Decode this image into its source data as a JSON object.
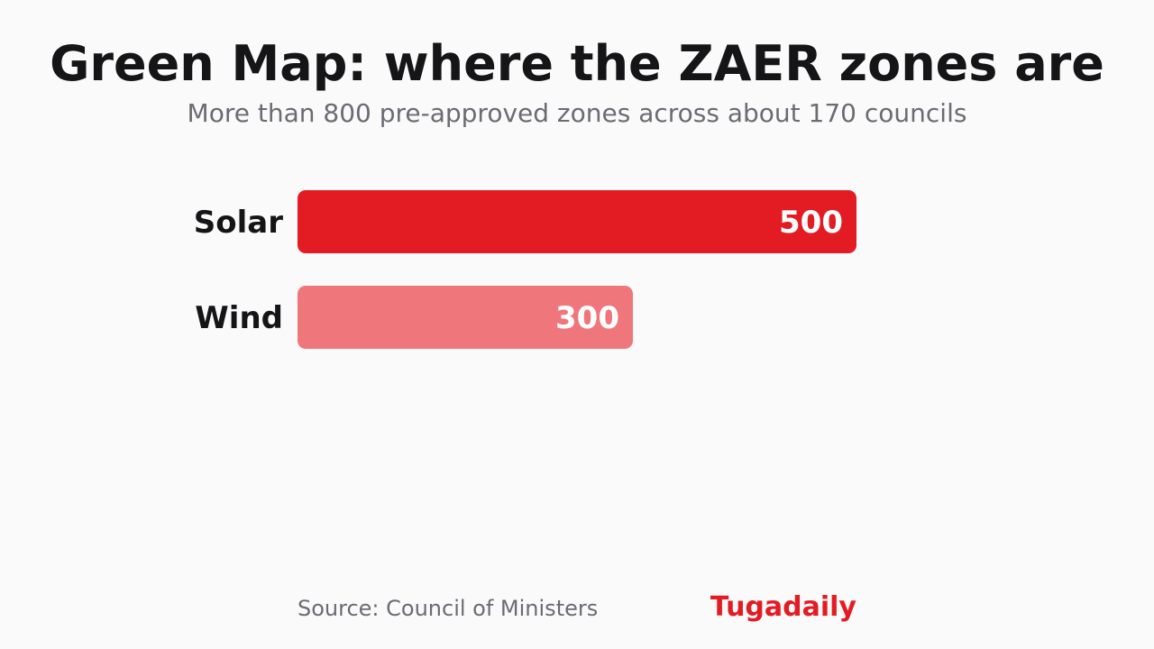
{
  "header": {
    "title": "Green Map: where the ZAER zones are",
    "subtitle": "More than 800 pre-approved zones across about 170 councils"
  },
  "footer": {
    "source": "Source: Council of Ministers",
    "brand": "Tugadaily"
  },
  "colors": {
    "primary": "#e31c24",
    "secondary": "#ef777c",
    "background": "#fafafa"
  },
  "chart_data": {
    "type": "bar",
    "orientation": "horizontal",
    "title": "Green Map: where the ZAER zones are",
    "subtitle": "More than 800 pre-approved zones across about 170 councils",
    "categories": [
      "Solar",
      "Wind"
    ],
    "values": [
      500,
      300
    ],
    "data_labels": [
      "500",
      "300"
    ],
    "bar_colors": [
      "#e31c24",
      "#ef777c"
    ],
    "xlim": [
      0,
      500
    ],
    "grid": false,
    "legend": "none"
  }
}
